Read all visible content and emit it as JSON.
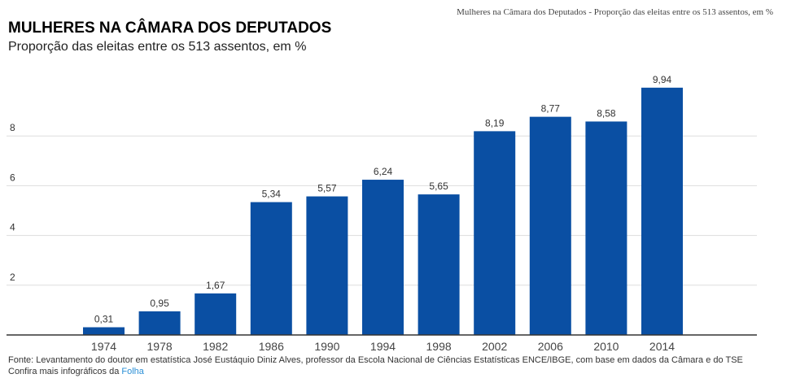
{
  "header": {
    "top_note": "Mulheres na Câmara dos Deputados - Proporção das eleitas entre os 513 assentos, em %"
  },
  "chart_data": {
    "type": "bar",
    "title": "MULHERES NA CÂMARA DOS DEPUTADOS",
    "subtitle": "Proporção das eleitas entre os 513 assentos, em %",
    "categories": [
      "1974",
      "1978",
      "1982",
      "1986",
      "1990",
      "1994",
      "1998",
      "2002",
      "2006",
      "2010",
      "2014"
    ],
    "values": [
      0.31,
      0.95,
      1.67,
      5.34,
      5.57,
      6.24,
      5.65,
      8.19,
      8.77,
      8.58,
      9.94
    ],
    "data_labels": [
      "0,31",
      "0,95",
      "1,67",
      "5,34",
      "5,57",
      "6,24",
      "5,65",
      "8,19",
      "8,77",
      "8,58",
      "9,94"
    ],
    "yticks": [
      2,
      4,
      6,
      8
    ],
    "ylim": [
      0,
      10.5
    ],
    "grid": true,
    "bar_color": "#0a4fa3",
    "xlabel": "",
    "ylabel": ""
  },
  "footer": {
    "source": "Fonte: Levantamento do doutor em estatística José Eustáquio Diniz Alves, professor da Escola Nacional de Ciências Estatísticas ENCE/IBGE, com base em dados da Câmara e do TSE",
    "more_prefix": "Confira mais infográficos da ",
    "more_link": "Folha",
    "link_color": "#2a8fd6"
  }
}
